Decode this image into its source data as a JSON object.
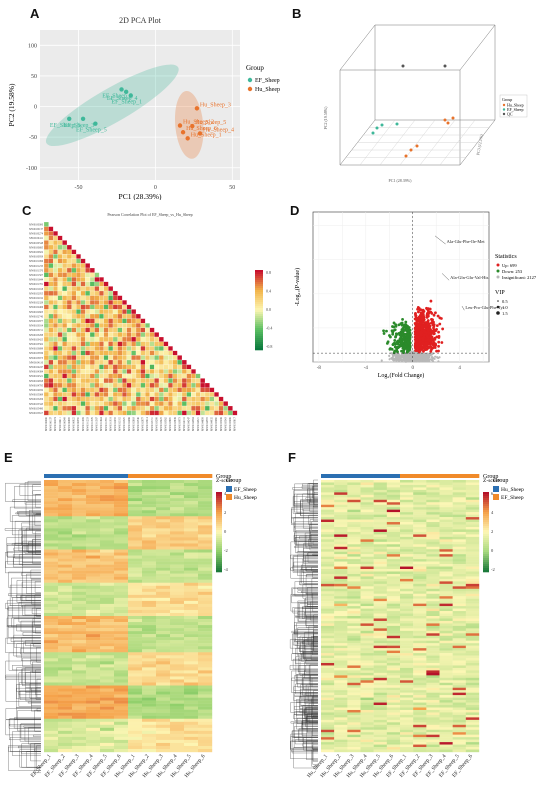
{
  "panel_labels": [
    "A",
    "B",
    "C",
    "D",
    "E",
    "F"
  ],
  "chart_data": [
    {
      "id": "A",
      "type": "scatter",
      "title": "2D PCA Plot",
      "xlabel": "PC1 (28.39%)",
      "ylabel": "PC2 (19.58%)",
      "xlim": [
        -75,
        55
      ],
      "ylim": [
        -120,
        125
      ],
      "xticks": [
        -50,
        0,
        50
      ],
      "yticks": [
        -100,
        -50,
        0,
        50,
        100
      ],
      "legend_title": "Group",
      "legend_position": "right",
      "series": [
        {
          "name": "EF_Sheep",
          "color": "#3fb89a",
          "points": [
            {
              "label": "EF_Sheep_1",
              "x": -16,
              "y": 18
            },
            {
              "label": "EF_Sheep_2",
              "x": -22,
              "y": 28
            },
            {
              "label": "EF_Sheep_3",
              "x": -47,
              "y": -20
            },
            {
              "label": "EF_Sheep_4",
              "x": -19,
              "y": 24
            },
            {
              "label": "EF_Sheep_5",
              "x": -39,
              "y": -28
            },
            {
              "label": "EF_Sheep_6",
              "x": -56,
              "y": -20
            }
          ]
        },
        {
          "name": "Hu_Sheep",
          "color": "#e8732c",
          "points": [
            {
              "label": "Hu_Sheep_1",
              "x": 21,
              "y": -52
            },
            {
              "label": "Hu_Sheep_2",
              "x": 16,
              "y": -31
            },
            {
              "label": "Hu_Sheep_3",
              "x": 27,
              "y": -3
            },
            {
              "label": "Hu_Sheep_4",
              "x": 29,
              "y": -44
            },
            {
              "label": "Hu_Sheep_5",
              "x": 24,
              "y": -32
            },
            {
              "label": "Hu_Sheep_6",
              "x": 18,
              "y": -42
            }
          ]
        }
      ]
    },
    {
      "id": "B",
      "type": "scatter",
      "xlabel": "PC1 (28.39%)",
      "ylabel": "PC2 (19.58%)",
      "zlabel": "PC3 (12.1%)",
      "legend_title": "Group",
      "legend_position": "right",
      "series": [
        {
          "name": "Hu_Sheep",
          "color": "#e8732c"
        },
        {
          "name": "EF_Sheep",
          "color": "#3fb89a"
        },
        {
          "name": "QC",
          "color": "#555555"
        }
      ]
    },
    {
      "id": "C",
      "type": "heatmap",
      "title": "Pearson Correlation Plot of EF_Sheep_vs_Hu_Sheep",
      "colorbar_ticks": [
        "0.8",
        "0.4",
        "0.0",
        "-0.4",
        "-0.8"
      ],
      "colorbar_colors": [
        "#c8102e",
        "#f2b44a",
        "#fdf6b2",
        "#5bbf62",
        "#0b7a3e"
      ]
    },
    {
      "id": "D",
      "type": "scatter",
      "xlabel": "Log₂(Fold Change)",
      "ylabel": "-Log₁₀(P-value)",
      "xlim": [
        -8.5,
        6.5
      ],
      "xticks": [
        -8,
        -4,
        0,
        4
      ],
      "annotations": [
        "Ala-Glu-Phe-Ile-Met",
        "Ala-Gln-Glu-Val-His",
        "Leu-Pro-Glu-Phe-Tyr"
      ],
      "legend_statistics_title": "Statistics",
      "legend_statistics": [
        {
          "label": "Up: 699",
          "color": "#e02020"
        },
        {
          "label": "Down: 253",
          "color": "#2a8a2a"
        },
        {
          "label": "Insignificant: 2127",
          "color": "#b8b8b8"
        }
      ],
      "legend_vip_title": "VIP",
      "legend_vip": [
        "0.5",
        "1.0",
        "1.5"
      ]
    },
    {
      "id": "E",
      "type": "heatmap",
      "columns": [
        "EF_Sheep_1",
        "EF_Sheep_2",
        "EF_Sheep_3",
        "EF_Sheep_4",
        "EF_Sheep_5",
        "EF_Sheep_6",
        "Hu_Sheep_1",
        "Hu_Sheep_2",
        "Hu_Sheep_3",
        "Hu_Sheep_4",
        "Hu_Sheep_5",
        "Hu_Sheep_6"
      ],
      "group_legend_title": "Group",
      "groups": [
        {
          "name": "EF_Sheep",
          "color": "#2b6fb2"
        },
        {
          "name": "Hu_Sheep",
          "color": "#f08a2a"
        }
      ],
      "zscore_title": "Z-score",
      "zscore_ticks": [
        "4",
        "2",
        "0",
        "-2",
        "-4"
      ]
    },
    {
      "id": "F",
      "type": "heatmap",
      "columns": [
        "Hu_Sheep_1",
        "Hu_Sheep_2",
        "Hu_Sheep_3",
        "Hu_Sheep_4",
        "Hu_Sheep_5",
        "Hu_Sheep_6",
        "EF_Sheep_1",
        "EF_Sheep_2",
        "EF_Sheep_3",
        "EF_Sheep_4",
        "EF_Sheep_5",
        "EF_Sheep_6"
      ],
      "group_legend_title": "Group",
      "groups": [
        {
          "name": "Hu_Sheep",
          "color": "#2b6fb2"
        },
        {
          "name": "EF_Sheep",
          "color": "#f08a2a"
        }
      ],
      "zscore_title": "Z-score",
      "zscore_ticks": [
        "6",
        "4",
        "2",
        "0",
        "-2"
      ]
    }
  ]
}
